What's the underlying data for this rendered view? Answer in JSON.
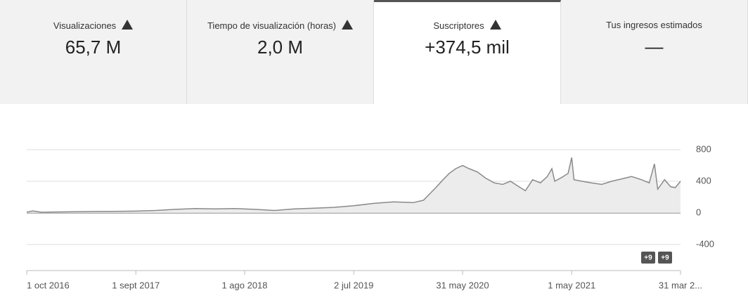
{
  "tabs": [
    {
      "label": "Visualizaciones",
      "value": "65,7 M",
      "warning": true
    },
    {
      "label": "Tiempo de visualización (horas)",
      "value": "2,0 M",
      "warning": true
    },
    {
      "label": "Suscriptores",
      "value": "+374,5 mil",
      "warning": true,
      "selected": true
    },
    {
      "label": "Tus ingresos estimados",
      "value": "—",
      "warning": false
    }
  ],
  "chart_data": {
    "type": "line",
    "color": "#8a8a8a",
    "fill": "#ececec",
    "x": [
      "2016-10-01",
      "2016-10-20",
      "2016-11-15",
      "2017-01-01",
      "2017-03-01",
      "2017-05-01",
      "2017-07-01",
      "2017-09-01",
      "2017-11-01",
      "2018-01-01",
      "2018-03-01",
      "2018-05-01",
      "2018-07-01",
      "2018-09-01",
      "2018-11-01",
      "2019-01-01",
      "2019-03-01",
      "2019-05-01",
      "2019-07-01",
      "2019-09-01",
      "2019-11-01",
      "2020-01-01",
      "2020-02-01",
      "2020-02-20",
      "2020-03-10",
      "2020-04-01",
      "2020-04-20",
      "2020-05-10",
      "2020-05-31",
      "2020-06-20",
      "2020-07-15",
      "2020-08-10",
      "2020-09-05",
      "2020-10-01",
      "2020-10-25",
      "2020-11-20",
      "2020-12-10",
      "2021-01-01",
      "2021-01-25",
      "2021-02-15",
      "2021-03-01",
      "2021-03-10",
      "2021-04-01",
      "2021-04-20",
      "2021-05-01",
      "2021-05-08",
      "2021-06-01",
      "2021-07-01",
      "2021-08-01",
      "2021-09-01",
      "2021-10-01",
      "2021-11-01",
      "2021-12-01",
      "2021-12-25",
      "2022-01-10",
      "2022-01-20",
      "2022-02-10",
      "2022-03-01",
      "2022-03-15",
      "2022-03-31"
    ],
    "values": [
      10,
      25,
      8,
      12,
      15,
      18,
      20,
      22,
      30,
      45,
      55,
      50,
      55,
      45,
      30,
      50,
      60,
      70,
      90,
      120,
      140,
      130,
      160,
      240,
      320,
      420,
      500,
      560,
      600,
      560,
      520,
      440,
      380,
      360,
      400,
      330,
      280,
      420,
      380,
      460,
      560,
      400,
      450,
      500,
      700,
      420,
      400,
      380,
      360,
      400,
      430,
      460,
      420,
      380,
      620,
      300,
      420,
      330,
      320,
      400
    ],
    "xlim": [
      "2016-10-01",
      "2022-03-31"
    ],
    "xticks": [
      {
        "value": "2016-10-01",
        "label": "1 oct 2016"
      },
      {
        "value": "2017-09-01",
        "label": "1 sept 2017"
      },
      {
        "value": "2018-08-01",
        "label": "1 ago 2018"
      },
      {
        "value": "2019-07-02",
        "label": "2 jul 2019"
      },
      {
        "value": "2020-05-31",
        "label": "31 may 2020"
      },
      {
        "value": "2021-05-01",
        "label": "1 may 2021"
      },
      {
        "value": "2022-03-31",
        "label": "31 mar 2..."
      }
    ],
    "ylim": [
      -730,
      1200
    ],
    "yticks": [
      800,
      400,
      0,
      -400
    ],
    "grid": true,
    "annotations": [
      "+9",
      "+9"
    ]
  }
}
